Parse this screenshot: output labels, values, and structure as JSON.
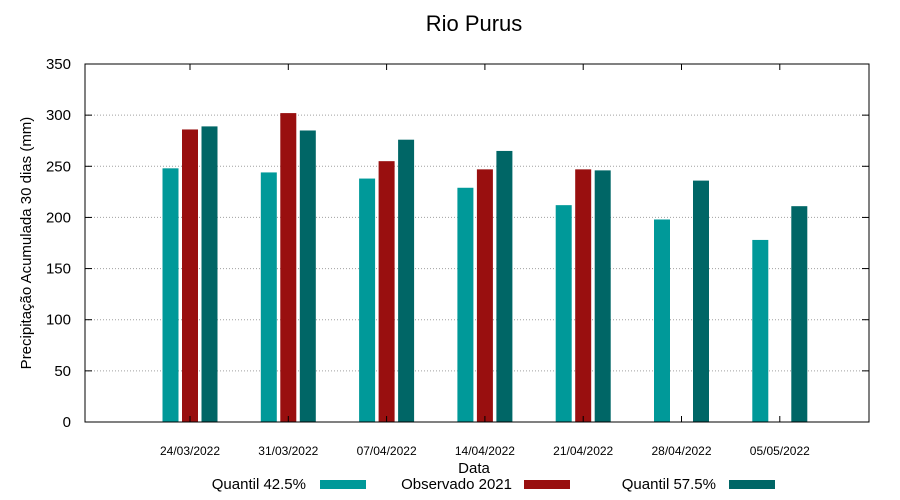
{
  "chart_data": {
    "type": "bar",
    "title": "Rio Purus",
    "xlabel": "Data",
    "ylabel": "Precipitação Acumulada 30 dias (mm)",
    "ylim": [
      0,
      350
    ],
    "yticks": [
      0,
      50,
      100,
      150,
      200,
      250,
      300,
      350
    ],
    "grid": true,
    "legend_position": "bottom",
    "categories": [
      "24/03/2022",
      "31/03/2022",
      "07/04/2022",
      "14/04/2022",
      "21/04/2022",
      "28/04/2022",
      "05/05/2022"
    ],
    "series": [
      {
        "name": "Quantil 42.5%",
        "color": "#009999",
        "values": [
          248,
          244,
          238,
          229,
          212,
          198,
          178
        ]
      },
      {
        "name": "Observado 2021",
        "color": "#990f0f",
        "values": [
          286,
          302,
          255,
          247,
          247,
          null,
          null
        ]
      },
      {
        "name": "Quantil 57.5%",
        "color": "#006666",
        "values": [
          289,
          285,
          276,
          265,
          246,
          236,
          211
        ]
      }
    ]
  }
}
